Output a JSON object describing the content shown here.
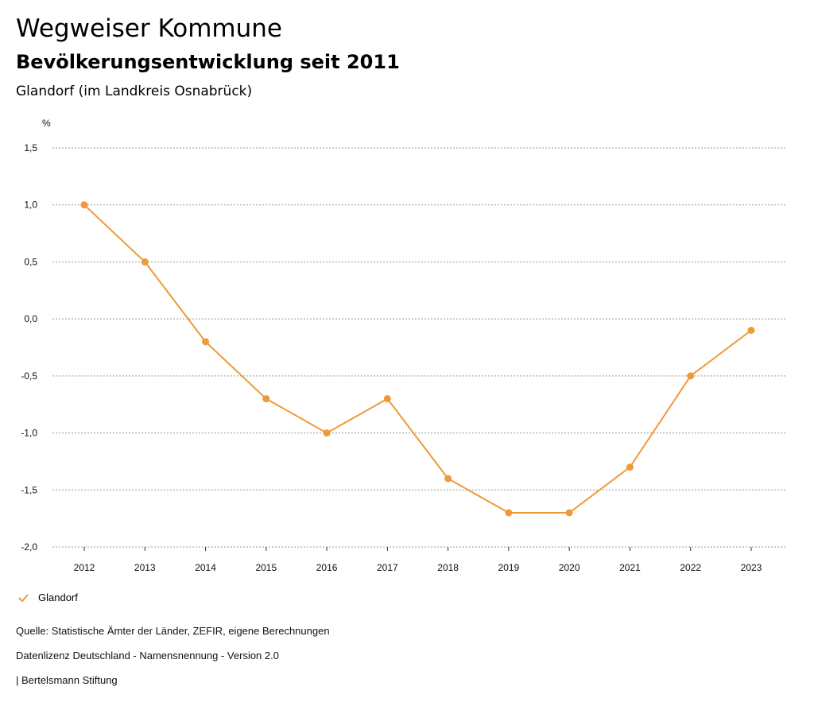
{
  "header": {
    "title": "Wegweiser Kommune",
    "subtitle": "Bevölkerungsentwicklung seit 2011",
    "region": "Glandorf (im Landkreis Osnabrück)"
  },
  "colors": {
    "series": "#f0993a",
    "grid": "#999999"
  },
  "chart_data": {
    "type": "line",
    "title": "Bevölkerungsentwicklung seit 2011",
    "ylabel": "%",
    "xlabel": "",
    "ylim": [
      -2.0,
      1.5
    ],
    "yticks": [
      1.5,
      1.0,
      0.5,
      0.0,
      -0.5,
      -1.0,
      -1.5,
      -2.0
    ],
    "ytick_labels": [
      "1,5",
      "1,0",
      "0,5",
      "0,0",
      "-0,5",
      "-1,0",
      "-1,5",
      "-2,0"
    ],
    "categories": [
      "2012",
      "2013",
      "2014",
      "2015",
      "2016",
      "2017",
      "2018",
      "2019",
      "2020",
      "2021",
      "2022",
      "2023"
    ],
    "series": [
      {
        "name": "Glandorf",
        "values": [
          1.0,
          0.5,
          -0.2,
          -0.7,
          -1.0,
          -0.7,
          -1.4,
          -1.7,
          -1.7,
          -1.3,
          -0.5,
          -0.1
        ]
      }
    ],
    "grid": true,
    "legend": "bottom-left"
  },
  "legend": {
    "label": "Glandorf"
  },
  "footer": {
    "source": "Quelle: Statistische Ämter der Länder, ZEFIR, eigene Berechnungen",
    "license": "Datenlizenz Deutschland - Namensnennung - Version 2.0",
    "publisher": "| Bertelsmann Stiftung"
  }
}
